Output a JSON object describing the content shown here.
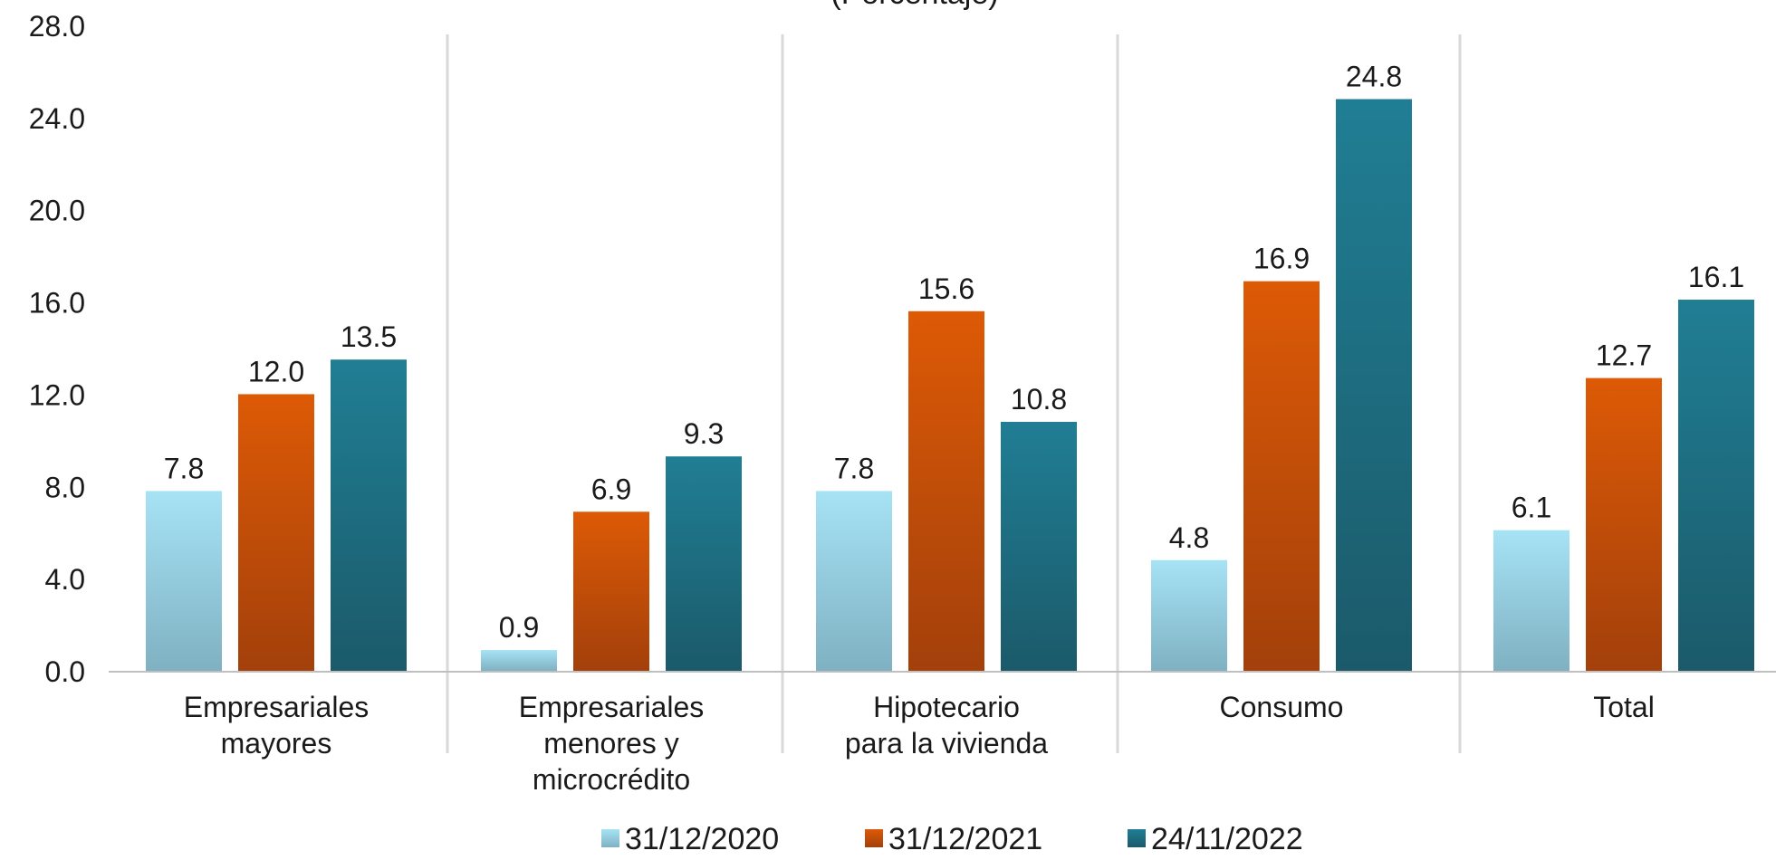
{
  "chart_data": {
    "type": "bar",
    "title": "(Porcentaje)",
    "categories": [
      [
        "Empresariales",
        "mayores"
      ],
      [
        "Empresariales",
        "menores y",
        "microcrédito"
      ],
      [
        "Hipotecario",
        "para la vivienda"
      ],
      [
        "Consumo"
      ],
      [
        "Total"
      ]
    ],
    "series": [
      {
        "name": "31/12/2020",
        "values": [
          7.8,
          0.9,
          7.8,
          4.8,
          6.1
        ]
      },
      {
        "name": "31/12/2021",
        "values": [
          12.0,
          6.9,
          15.6,
          16.9,
          12.7
        ]
      },
      {
        "name": "24/11/2022",
        "values": [
          13.5,
          9.3,
          10.8,
          24.8,
          16.1
        ]
      }
    ],
    "ylim": [
      0,
      28
    ],
    "yticks": [
      "0.0",
      "4.0",
      "8.0",
      "12.0",
      "16.0",
      "20.0",
      "24.0",
      "28.0"
    ],
    "legend_position": "bottom",
    "colors": {
      "series_top": [
        "#a6e3f5",
        "#dd5a06",
        "#207e94"
      ],
      "series_bottom": [
        "#7fb1c2",
        "#a3400b",
        "#1b5a6a"
      ],
      "gridline": "#d9d9d9",
      "axis": "#bfbfbf"
    }
  }
}
